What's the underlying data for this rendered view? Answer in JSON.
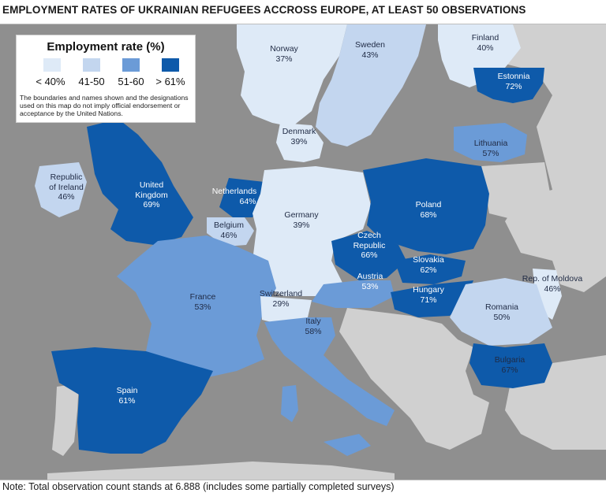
{
  "title": "EMPLOYMENT RATES OF UKRAINIAN REFUGEES ACCROSS EUROPE, AT LEAST 50 OBSERVATIONS",
  "legend": {
    "title": "Employment rate (%)",
    "items": [
      {
        "label": "< 40%",
        "color": "#deeaf7"
      },
      {
        "label": "41-50",
        "color": "#c3d6ef"
      },
      {
        "label": "51-60",
        "color": "#6b9bd7"
      },
      {
        "label": "> 61%",
        "color": "#0e5aaa"
      }
    ],
    "disclaimer": "The boundaries and names shown and the designations used on this map do not imply official endorsement or acceptance by the United Nations."
  },
  "countries": [
    {
      "name": "Norway",
      "value": "37%",
      "bin": 0
    },
    {
      "name": "Sweden",
      "value": "43%",
      "bin": 1
    },
    {
      "name": "Finland",
      "value": "40%",
      "bin": 0
    },
    {
      "name": "Estonnia",
      "value": "72%",
      "bin": 3
    },
    {
      "name": "Denmark",
      "value": "39%",
      "bin": 0
    },
    {
      "name": "Lithuania",
      "value": "57%",
      "bin": 2
    },
    {
      "name": "Republic of Ireland",
      "value": "46%",
      "bin": 1
    },
    {
      "name": "United Kingdom",
      "value": "69%",
      "bin": 3
    },
    {
      "name": "Netherlands",
      "value": "64%",
      "bin": 3
    },
    {
      "name": "Germany",
      "value": "39%",
      "bin": 0
    },
    {
      "name": "Poland",
      "value": "68%",
      "bin": 3
    },
    {
      "name": "Belgium",
      "value": "46%",
      "bin": 1
    },
    {
      "name": "Czech Republic",
      "value": "66%",
      "bin": 3
    },
    {
      "name": "Slovakia",
      "value": "62%",
      "bin": 3
    },
    {
      "name": "Austria",
      "value": "53%",
      "bin": 2
    },
    {
      "name": "Rep. of Moldova",
      "value": "46%",
      "bin": 1
    },
    {
      "name": "France",
      "value": "53%",
      "bin": 2
    },
    {
      "name": "Switzerland",
      "value": "29%",
      "bin": 0
    },
    {
      "name": "Hungary",
      "value": "71%",
      "bin": 3
    },
    {
      "name": "Romania",
      "value": "50%",
      "bin": 1
    },
    {
      "name": "Italy",
      "value": "58%",
      "bin": 2
    },
    {
      "name": "Bulgaria",
      "value": "67%",
      "bin": 3
    },
    {
      "name": "Spain",
      "value": "61%",
      "bin": 3
    }
  ],
  "labels": {
    "norway": [
      "Norway",
      "37%"
    ],
    "sweden": [
      "Sweden",
      "43%"
    ],
    "finland": [
      "Finland",
      "40%"
    ],
    "estonia": [
      "Estonnia",
      "72%"
    ],
    "denmark": [
      "Denmark",
      "39%"
    ],
    "lithuania": [
      "Lithuania",
      "57%"
    ],
    "ireland": [
      "Republic",
      "of Ireland",
      "46%"
    ],
    "uk": [
      "United",
      "Kingdom",
      "69%"
    ],
    "netherlands": [
      "Netherlands",
      "64%"
    ],
    "germany": [
      "Germany",
      "39%"
    ],
    "poland": [
      "Poland",
      "68%"
    ],
    "belgium": [
      "Belgium",
      "46%"
    ],
    "czech": [
      "Czech",
      "Republic",
      "66%"
    ],
    "slovakia": [
      "Slovakia",
      "62%"
    ],
    "austria": [
      "Austria",
      "53%"
    ],
    "moldova": [
      "Rep. of Moldova",
      "46%"
    ],
    "france": [
      "France",
      "53%"
    ],
    "switzerland": [
      "Switzerland",
      "29%"
    ],
    "hungary": [
      "Hungary",
      "71%"
    ],
    "romania": [
      "Romania",
      "50%"
    ],
    "italy": [
      "Italy",
      "58%"
    ],
    "bulgaria": [
      "Bulgaria",
      "67%"
    ],
    "spain": [
      "Spain",
      "61%"
    ]
  },
  "note": "Note: Total observation count stands at 6.888 (includes some partially completed surveys)"
}
